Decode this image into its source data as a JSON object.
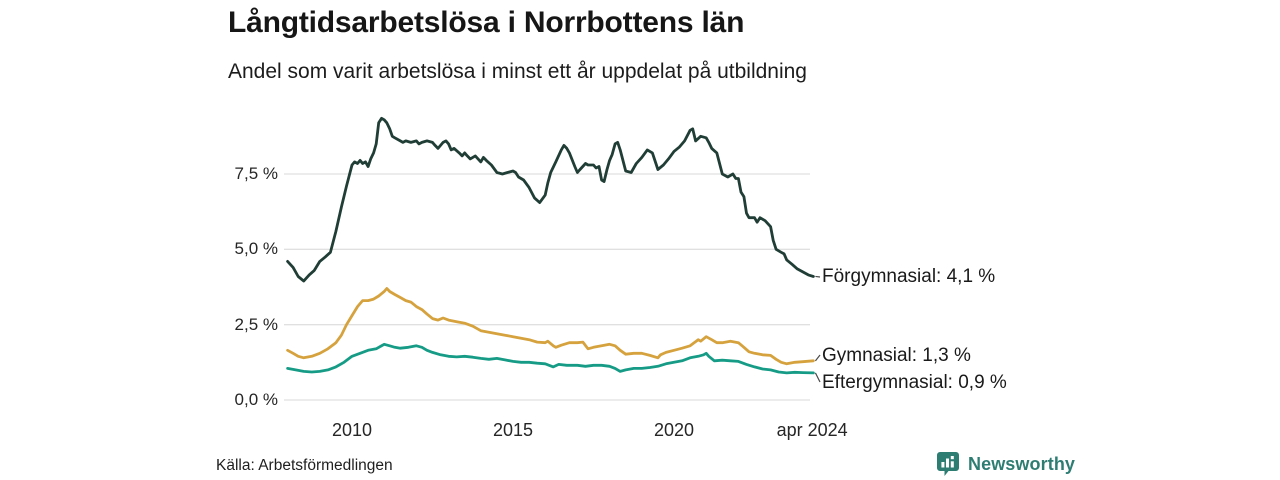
{
  "source": "Källa: Arbetsförmedlingen",
  "branding": {
    "name": "Newsworthy",
    "icon": "speech-bubble-bar-chart",
    "color": "#2e7d73"
  },
  "chart_data": {
    "type": "line",
    "title": "Långtidsarbetslösa i Norrbottens län",
    "subtitle": "Andel som varit arbetslösa i minst ett år uppdelat på utbildning",
    "unit": "%",
    "grid": true,
    "legend_position": "end-of-line-labels",
    "x_axis": {
      "range_years": [
        2008.0,
        2024.33
      ],
      "ticks": [
        {
          "label": "2010",
          "year": 2010
        },
        {
          "label": "2015",
          "year": 2015
        },
        {
          "label": "2020",
          "year": 2020
        },
        {
          "label": "apr 2024",
          "year": 2024.29
        }
      ]
    },
    "y_axis": {
      "range": [
        0,
        9.6
      ],
      "ticks": [
        {
          "label": "7,5 %",
          "value": 7.5
        },
        {
          "label": "5,0 %",
          "value": 5.0
        },
        {
          "label": "2,5 %",
          "value": 2.5
        },
        {
          "label": "0,0 %",
          "value": 0.0
        }
      ]
    },
    "series": [
      {
        "key": "forgymnasial",
        "name": "Förgymnasial",
        "end_label": "Förgymnasial: 4,1 %",
        "end_value": 4.1,
        "color": "#203e36",
        "points": [
          [
            2008.0,
            4.6
          ],
          [
            2008.17,
            4.4
          ],
          [
            2008.33,
            4.1
          ],
          [
            2008.5,
            3.95
          ],
          [
            2008.67,
            4.15
          ],
          [
            2008.83,
            4.3
          ],
          [
            2009.0,
            4.6
          ],
          [
            2009.17,
            4.75
          ],
          [
            2009.33,
            4.9
          ],
          [
            2009.5,
            5.6
          ],
          [
            2009.67,
            6.4
          ],
          [
            2009.83,
            7.1
          ],
          [
            2010.0,
            7.8
          ],
          [
            2010.08,
            7.9
          ],
          [
            2010.17,
            7.85
          ],
          [
            2010.25,
            7.95
          ],
          [
            2010.33,
            7.85
          ],
          [
            2010.42,
            7.9
          ],
          [
            2010.5,
            7.75
          ],
          [
            2010.58,
            8.0
          ],
          [
            2010.67,
            8.2
          ],
          [
            2010.75,
            8.5
          ],
          [
            2010.83,
            9.2
          ],
          [
            2010.92,
            9.35
          ],
          [
            2011.0,
            9.3
          ],
          [
            2011.08,
            9.2
          ],
          [
            2011.17,
            9.0
          ],
          [
            2011.25,
            8.75
          ],
          [
            2011.33,
            8.7
          ],
          [
            2011.5,
            8.6
          ],
          [
            2011.58,
            8.55
          ],
          [
            2011.67,
            8.6
          ],
          [
            2011.83,
            8.55
          ],
          [
            2012.0,
            8.6
          ],
          [
            2012.08,
            8.5
          ],
          [
            2012.17,
            8.55
          ],
          [
            2012.33,
            8.6
          ],
          [
            2012.5,
            8.55
          ],
          [
            2012.58,
            8.45
          ],
          [
            2012.67,
            8.35
          ],
          [
            2012.83,
            8.55
          ],
          [
            2012.92,
            8.6
          ],
          [
            2013.0,
            8.5
          ],
          [
            2013.08,
            8.3
          ],
          [
            2013.17,
            8.35
          ],
          [
            2013.33,
            8.2
          ],
          [
            2013.42,
            8.1
          ],
          [
            2013.5,
            8.2
          ],
          [
            2013.58,
            8.1
          ],
          [
            2013.67,
            8.0
          ],
          [
            2013.83,
            8.1
          ],
          [
            2014.0,
            7.9
          ],
          [
            2014.08,
            8.05
          ],
          [
            2014.17,
            7.95
          ],
          [
            2014.33,
            7.8
          ],
          [
            2014.5,
            7.55
          ],
          [
            2014.67,
            7.5
          ],
          [
            2014.83,
            7.55
          ],
          [
            2015.0,
            7.6
          ],
          [
            2015.08,
            7.55
          ],
          [
            2015.17,
            7.4
          ],
          [
            2015.33,
            7.3
          ],
          [
            2015.5,
            7.05
          ],
          [
            2015.67,
            6.7
          ],
          [
            2015.83,
            6.55
          ],
          [
            2016.0,
            6.8
          ],
          [
            2016.08,
            7.2
          ],
          [
            2016.17,
            7.55
          ],
          [
            2016.33,
            7.9
          ],
          [
            2016.5,
            8.3
          ],
          [
            2016.58,
            8.45
          ],
          [
            2016.67,
            8.35
          ],
          [
            2016.75,
            8.2
          ],
          [
            2016.92,
            7.75
          ],
          [
            2017.0,
            7.55
          ],
          [
            2017.08,
            7.65
          ],
          [
            2017.25,
            7.85
          ],
          [
            2017.33,
            7.8
          ],
          [
            2017.5,
            7.8
          ],
          [
            2017.58,
            7.7
          ],
          [
            2017.67,
            7.75
          ],
          [
            2017.75,
            7.3
          ],
          [
            2017.83,
            7.25
          ],
          [
            2017.92,
            7.65
          ],
          [
            2018.0,
            7.95
          ],
          [
            2018.08,
            8.15
          ],
          [
            2018.17,
            8.5
          ],
          [
            2018.25,
            8.55
          ],
          [
            2018.33,
            8.3
          ],
          [
            2018.5,
            7.6
          ],
          [
            2018.67,
            7.55
          ],
          [
            2018.83,
            7.85
          ],
          [
            2019.0,
            8.05
          ],
          [
            2019.17,
            8.3
          ],
          [
            2019.33,
            8.2
          ],
          [
            2019.5,
            7.65
          ],
          [
            2019.67,
            7.8
          ],
          [
            2019.83,
            8.0
          ],
          [
            2020.0,
            8.25
          ],
          [
            2020.17,
            8.4
          ],
          [
            2020.33,
            8.6
          ],
          [
            2020.5,
            8.95
          ],
          [
            2020.58,
            9.0
          ],
          [
            2020.67,
            8.6
          ],
          [
            2020.83,
            8.75
          ],
          [
            2021.0,
            8.7
          ],
          [
            2021.08,
            8.55
          ],
          [
            2021.17,
            8.35
          ],
          [
            2021.33,
            8.2
          ],
          [
            2021.5,
            7.5
          ],
          [
            2021.67,
            7.4
          ],
          [
            2021.83,
            7.5
          ],
          [
            2021.92,
            7.35
          ],
          [
            2022.0,
            7.35
          ],
          [
            2022.08,
            6.9
          ],
          [
            2022.17,
            6.75
          ],
          [
            2022.25,
            6.2
          ],
          [
            2022.33,
            6.05
          ],
          [
            2022.5,
            6.05
          ],
          [
            2022.58,
            5.9
          ],
          [
            2022.67,
            6.05
          ],
          [
            2022.83,
            5.95
          ],
          [
            2023.0,
            5.75
          ],
          [
            2023.08,
            5.3
          ],
          [
            2023.17,
            5.0
          ],
          [
            2023.33,
            4.9
          ],
          [
            2023.42,
            4.85
          ],
          [
            2023.5,
            4.65
          ],
          [
            2023.67,
            4.5
          ],
          [
            2023.83,
            4.35
          ],
          [
            2024.0,
            4.25
          ],
          [
            2024.17,
            4.15
          ],
          [
            2024.33,
            4.1
          ]
        ]
      },
      {
        "key": "gymnasial",
        "name": "Gymnasial",
        "end_label": "Gymnasial: 1,3 %",
        "end_value": 1.3,
        "color": "#d5a23e",
        "points": [
          [
            2008.0,
            1.65
          ],
          [
            2008.17,
            1.55
          ],
          [
            2008.33,
            1.45
          ],
          [
            2008.5,
            1.4
          ],
          [
            2008.75,
            1.45
          ],
          [
            2009.0,
            1.55
          ],
          [
            2009.25,
            1.7
          ],
          [
            2009.5,
            1.9
          ],
          [
            2009.67,
            2.15
          ],
          [
            2009.83,
            2.5
          ],
          [
            2010.0,
            2.8
          ],
          [
            2010.17,
            3.1
          ],
          [
            2010.33,
            3.3
          ],
          [
            2010.5,
            3.3
          ],
          [
            2010.67,
            3.35
          ],
          [
            2010.83,
            3.45
          ],
          [
            2011.0,
            3.6
          ],
          [
            2011.08,
            3.7
          ],
          [
            2011.17,
            3.6
          ],
          [
            2011.33,
            3.5
          ],
          [
            2011.5,
            3.4
          ],
          [
            2011.67,
            3.3
          ],
          [
            2011.83,
            3.25
          ],
          [
            2012.0,
            3.1
          ],
          [
            2012.17,
            3.0
          ],
          [
            2012.33,
            2.85
          ],
          [
            2012.5,
            2.7
          ],
          [
            2012.67,
            2.65
          ],
          [
            2012.83,
            2.72
          ],
          [
            2013.0,
            2.65
          ],
          [
            2013.25,
            2.6
          ],
          [
            2013.5,
            2.55
          ],
          [
            2013.75,
            2.45
          ],
          [
            2014.0,
            2.3
          ],
          [
            2014.25,
            2.25
          ],
          [
            2014.5,
            2.2
          ],
          [
            2014.75,
            2.15
          ],
          [
            2015.0,
            2.1
          ],
          [
            2015.25,
            2.05
          ],
          [
            2015.5,
            2.0
          ],
          [
            2015.75,
            1.92
          ],
          [
            2016.0,
            1.9
          ],
          [
            2016.08,
            1.95
          ],
          [
            2016.25,
            1.8
          ],
          [
            2016.33,
            1.75
          ],
          [
            2016.5,
            1.82
          ],
          [
            2016.75,
            1.9
          ],
          [
            2017.0,
            1.9
          ],
          [
            2017.17,
            1.92
          ],
          [
            2017.33,
            1.7
          ],
          [
            2017.5,
            1.75
          ],
          [
            2017.75,
            1.8
          ],
          [
            2018.0,
            1.85
          ],
          [
            2018.17,
            1.8
          ],
          [
            2018.33,
            1.65
          ],
          [
            2018.5,
            1.52
          ],
          [
            2018.75,
            1.55
          ],
          [
            2019.0,
            1.55
          ],
          [
            2019.25,
            1.48
          ],
          [
            2019.5,
            1.4
          ],
          [
            2019.58,
            1.5
          ],
          [
            2019.75,
            1.58
          ],
          [
            2020.0,
            1.65
          ],
          [
            2020.25,
            1.72
          ],
          [
            2020.5,
            1.8
          ],
          [
            2020.75,
            2.0
          ],
          [
            2020.83,
            1.95
          ],
          [
            2021.0,
            2.1
          ],
          [
            2021.17,
            2.0
          ],
          [
            2021.33,
            1.9
          ],
          [
            2021.5,
            1.9
          ],
          [
            2021.75,
            1.95
          ],
          [
            2022.0,
            1.9
          ],
          [
            2022.17,
            1.75
          ],
          [
            2022.33,
            1.6
          ],
          [
            2022.5,
            1.55
          ],
          [
            2022.75,
            1.5
          ],
          [
            2023.0,
            1.48
          ],
          [
            2023.17,
            1.35
          ],
          [
            2023.33,
            1.25
          ],
          [
            2023.5,
            1.2
          ],
          [
            2023.75,
            1.25
          ],
          [
            2024.0,
            1.27
          ],
          [
            2024.33,
            1.3
          ]
        ]
      },
      {
        "key": "eftergymnasial",
        "name": "Eftergymnasial",
        "end_label": "Eftergymnasial: 0,9 %",
        "end_value": 0.9,
        "color": "#169c86",
        "points": [
          [
            2008.0,
            1.05
          ],
          [
            2008.25,
            1.0
          ],
          [
            2008.5,
            0.95
          ],
          [
            2008.75,
            0.93
          ],
          [
            2009.0,
            0.95
          ],
          [
            2009.25,
            1.0
          ],
          [
            2009.5,
            1.1
          ],
          [
            2009.75,
            1.25
          ],
          [
            2010.0,
            1.45
          ],
          [
            2010.25,
            1.55
          ],
          [
            2010.5,
            1.65
          ],
          [
            2010.75,
            1.7
          ],
          [
            2011.0,
            1.85
          ],
          [
            2011.17,
            1.8
          ],
          [
            2011.33,
            1.75
          ],
          [
            2011.5,
            1.72
          ],
          [
            2011.75,
            1.75
          ],
          [
            2012.0,
            1.8
          ],
          [
            2012.17,
            1.75
          ],
          [
            2012.33,
            1.65
          ],
          [
            2012.5,
            1.58
          ],
          [
            2012.75,
            1.5
          ],
          [
            2013.0,
            1.45
          ],
          [
            2013.25,
            1.43
          ],
          [
            2013.5,
            1.45
          ],
          [
            2013.75,
            1.42
          ],
          [
            2014.0,
            1.38
          ],
          [
            2014.25,
            1.35
          ],
          [
            2014.5,
            1.38
          ],
          [
            2014.75,
            1.33
          ],
          [
            2015.0,
            1.28
          ],
          [
            2015.25,
            1.25
          ],
          [
            2015.5,
            1.25
          ],
          [
            2015.75,
            1.22
          ],
          [
            2016.0,
            1.2
          ],
          [
            2016.25,
            1.1
          ],
          [
            2016.42,
            1.18
          ],
          [
            2016.67,
            1.15
          ],
          [
            2017.0,
            1.15
          ],
          [
            2017.25,
            1.12
          ],
          [
            2017.5,
            1.15
          ],
          [
            2017.75,
            1.15
          ],
          [
            2018.0,
            1.12
          ],
          [
            2018.17,
            1.05
          ],
          [
            2018.33,
            0.95
          ],
          [
            2018.5,
            1.0
          ],
          [
            2018.75,
            1.05
          ],
          [
            2019.0,
            1.05
          ],
          [
            2019.25,
            1.08
          ],
          [
            2019.5,
            1.12
          ],
          [
            2019.75,
            1.2
          ],
          [
            2020.0,
            1.25
          ],
          [
            2020.25,
            1.3
          ],
          [
            2020.5,
            1.4
          ],
          [
            2020.75,
            1.45
          ],
          [
            2020.92,
            1.5
          ],
          [
            2021.0,
            1.55
          ],
          [
            2021.08,
            1.45
          ],
          [
            2021.25,
            1.3
          ],
          [
            2021.5,
            1.32
          ],
          [
            2021.75,
            1.3
          ],
          [
            2022.0,
            1.28
          ],
          [
            2022.25,
            1.18
          ],
          [
            2022.5,
            1.1
          ],
          [
            2022.75,
            1.03
          ],
          [
            2023.0,
            1.0
          ],
          [
            2023.25,
            0.93
          ],
          [
            2023.5,
            0.9
          ],
          [
            2023.75,
            0.92
          ],
          [
            2024.0,
            0.91
          ],
          [
            2024.33,
            0.9
          ]
        ]
      }
    ]
  }
}
